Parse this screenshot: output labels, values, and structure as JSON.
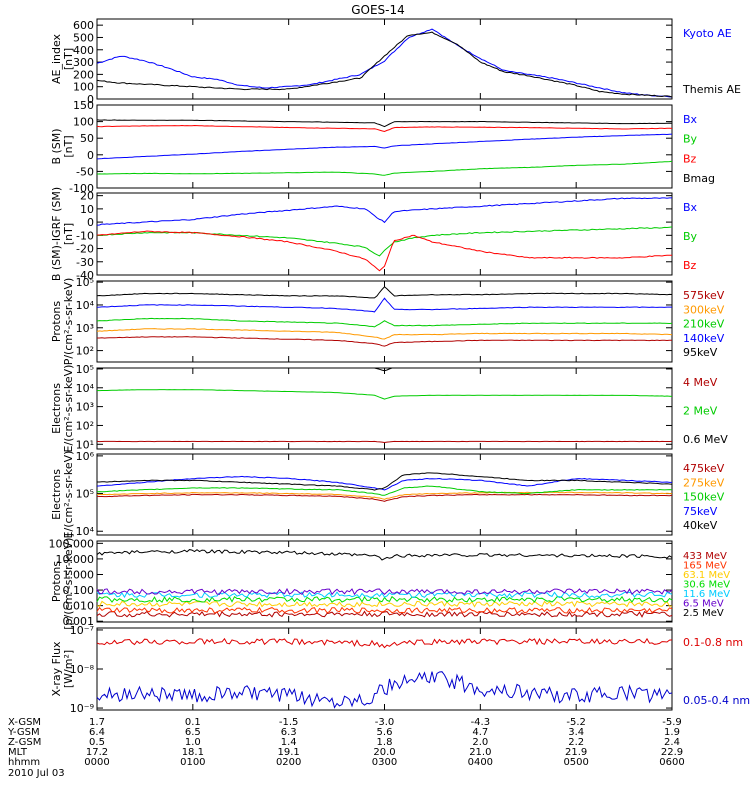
{
  "title": "GOES-14",
  "chart_data": [
    {
      "type": "line",
      "ylabel": "AE_index\n[nT]",
      "ylim": [
        0,
        650
      ],
      "yticks": [
        "600",
        "500",
        "400",
        "300",
        "200",
        "100",
        "0"
      ],
      "tick_values": [
        600,
        500,
        400,
        300,
        200,
        100,
        0
      ],
      "yscale": "linear",
      "x": [
        0,
        0.25,
        0.5,
        0.75,
        1,
        1.25,
        1.5,
        1.75,
        2,
        2.25,
        2.5,
        2.75,
        3,
        3.25,
        3.5,
        3.75,
        4,
        4.25,
        4.5,
        4.75,
        5,
        5.25,
        5.5,
        5.75,
        6
      ],
      "series": [
        {
          "name": "Kyoto AE",
          "color": "#0000ff",
          "values": [
            290,
            350,
            310,
            250,
            180,
            160,
            110,
            90,
            100,
            120,
            160,
            200,
            310,
            500,
            570,
            440,
            330,
            230,
            200,
            170,
            130,
            90,
            50,
            30,
            20
          ]
        },
        {
          "name": "Themis AE",
          "color": "#000000",
          "values": [
            150,
            130,
            120,
            110,
            100,
            90,
            80,
            80,
            80,
            110,
            140,
            170,
            350,
            520,
            540,
            450,
            300,
            220,
            190,
            150,
            110,
            60,
            40,
            30,
            20
          ]
        }
      ]
    },
    {
      "type": "line",
      "ylabel": "B (SM)\n[nT]",
      "ylim": [
        -100,
        150
      ],
      "yticks": [
        "150",
        "100",
        "50",
        "0",
        "-50",
        "-100"
      ],
      "tick_values": [
        150,
        100,
        50,
        0,
        -50,
        -100
      ],
      "yscale": "linear",
      "x": [
        0,
        0.5,
        1,
        1.5,
        2,
        2.5,
        2.9,
        3.0,
        3.1,
        3.5,
        4,
        4.5,
        5,
        5.5,
        6
      ],
      "series": [
        {
          "name": "Bx",
          "color": "#0000ff",
          "values": [
            -12,
            -5,
            2,
            10,
            17,
            23,
            25,
            20,
            27,
            33,
            40,
            47,
            53,
            58,
            62
          ]
        },
        {
          "name": "By",
          "color": "#00cc00",
          "values": [
            -58,
            -56,
            -57,
            -56,
            -54,
            -52,
            -58,
            -62,
            -55,
            -50,
            -42,
            -38,
            -32,
            -28,
            -20
          ]
        },
        {
          "name": "Bz",
          "color": "#ff0000",
          "values": [
            85,
            87,
            88,
            85,
            82,
            80,
            78,
            70,
            82,
            84,
            83,
            82,
            80,
            78,
            80
          ]
        },
        {
          "name": "Bmag",
          "color": "#000000",
          "values": [
            105,
            104,
            104,
            102,
            100,
            98,
            96,
            85,
            100,
            100,
            100,
            98,
            96,
            94,
            95
          ]
        }
      ]
    },
    {
      "type": "line",
      "ylabel": "B (SM)-IGRF (SM)\n[nT]",
      "ylim": [
        -40,
        22
      ],
      "yticks": [
        "20",
        "10",
        "0",
        "-10",
        "-20",
        "-30",
        "-40"
      ],
      "tick_values": [
        20,
        10,
        0,
        -10,
        -20,
        -30,
        -40
      ],
      "yscale": "linear",
      "x": [
        0,
        0.5,
        1,
        1.5,
        2,
        2.5,
        2.8,
        2.95,
        3.0,
        3.1,
        3.3,
        3.5,
        4,
        4.5,
        5,
        5.5,
        6
      ],
      "series": [
        {
          "name": "Bx",
          "color": "#0000ff",
          "values": [
            -2,
            0,
            2,
            6,
            9,
            12,
            10,
            2,
            0,
            8,
            9,
            10,
            12,
            14,
            16,
            18,
            18
          ]
        },
        {
          "name": "By",
          "color": "#00cc00",
          "values": [
            -10,
            -8,
            -8,
            -10,
            -12,
            -16,
            -19,
            -26,
            -21,
            -15,
            -12,
            -10,
            -8,
            -7,
            -6,
            -5,
            -4
          ]
        },
        {
          "name": "Bz",
          "color": "#ff0000",
          "values": [
            -10,
            -7,
            -8,
            -11,
            -15,
            -22,
            -28,
            -37,
            -33,
            -14,
            -10,
            -15,
            -22,
            -27,
            -27,
            -27,
            -25
          ]
        }
      ]
    },
    {
      "type": "line",
      "ylabel": "Protons\nP/(cm²-s-sr-keV)",
      "ylim": [
        1.5,
        5.05
      ],
      "yscale": "log",
      "yticks": [
        "10⁵",
        "10⁴",
        "10³",
        "10²"
      ],
      "tick_values": [
        5,
        4,
        3,
        2
      ],
      "x": [
        0,
        0.5,
        1,
        1.5,
        2,
        2.5,
        2.9,
        3.0,
        3.1,
        3.5,
        4,
        4.5,
        5,
        5.5,
        6
      ],
      "series": [
        {
          "name": "575keV",
          "color": "#b00000",
          "values": [
            2.55,
            2.6,
            2.6,
            2.55,
            2.5,
            2.45,
            2.3,
            2.2,
            2.35,
            2.4,
            2.45,
            2.45,
            2.45,
            2.45,
            2.45
          ]
        },
        {
          "name": "300keV",
          "color": "#ff9900",
          "values": [
            2.85,
            2.95,
            2.95,
            2.9,
            2.85,
            2.8,
            2.6,
            2.5,
            2.7,
            2.7,
            2.75,
            2.75,
            2.75,
            2.75,
            2.7
          ]
        },
        {
          "name": "210keV",
          "color": "#00cc00",
          "values": [
            3.3,
            3.4,
            3.4,
            3.3,
            3.25,
            3.2,
            3.05,
            3.3,
            3.1,
            3.1,
            3.15,
            3.2,
            3.2,
            3.2,
            3.2
          ]
        },
        {
          "name": "140keV",
          "color": "#0000ff",
          "values": [
            3.9,
            4.0,
            4.0,
            3.95,
            3.9,
            3.85,
            3.7,
            4.3,
            3.8,
            3.8,
            3.85,
            3.9,
            3.9,
            3.9,
            3.9
          ]
        },
        {
          "name": "95keV",
          "color": "#000000",
          "values": [
            4.4,
            4.5,
            4.5,
            4.45,
            4.4,
            4.4,
            4.3,
            4.8,
            4.4,
            4.45,
            4.45,
            4.5,
            4.5,
            4.5,
            4.45
          ]
        }
      ]
    },
    {
      "type": "line",
      "ylabel": "Electrons\nE/(cm²-s-sr-keV)",
      "ylim": [
        0.75,
        5.05
      ],
      "yscale": "log",
      "yticks": [
        "10⁵",
        "10⁴",
        "10³",
        "10²",
        "10¹"
      ],
      "tick_values": [
        5,
        4,
        3,
        2,
        1
      ],
      "x": [
        0,
        0.5,
        1,
        1.5,
        2,
        2.5,
        2.9,
        3.0,
        3.1,
        3.5,
        4,
        4.5,
        5,
        5.5,
        6
      ],
      "series": [
        {
          "name": "4 MeV",
          "color": "#b00000",
          "values": [
            1.15,
            1.15,
            1.15,
            1.15,
            1.15,
            1.15,
            1.15,
            1.1,
            1.15,
            1.15,
            1.15,
            1.15,
            1.15,
            1.15,
            1.15
          ]
        },
        {
          "name": "2 MeV",
          "color": "#00cc00",
          "values": [
            3.85,
            3.9,
            3.9,
            3.85,
            3.8,
            3.75,
            3.6,
            3.4,
            3.55,
            3.6,
            3.6,
            3.6,
            3.6,
            3.6,
            3.55
          ]
        },
        {
          "name": "0.6 MeV",
          "color": "#000000",
          "values": [
            5.1,
            5.1,
            5.1,
            5.1,
            5.1,
            5.1,
            5.05,
            4.9,
            5.1,
            5.1,
            5.1,
            5.1,
            5.1,
            5.1,
            5.1
          ]
        }
      ]
    },
    {
      "type": "line",
      "ylabel": "Electrons\nE/(cm²-s-sr-keV)",
      "ylim": [
        3.9,
        6.05
      ],
      "yscale": "log",
      "yticks": [
        "10⁶",
        "10⁵",
        "10⁴"
      ],
      "tick_values": [
        6,
        5,
        4
      ],
      "x": [
        0,
        0.5,
        1,
        1.5,
        2,
        2.5,
        2.9,
        3.0,
        3.2,
        3.5,
        4,
        4.5,
        5,
        5.5,
        6
      ],
      "series": [
        {
          "name": "475keV",
          "color": "#b00000",
          "values": [
            4.92,
            4.95,
            4.97,
            4.97,
            4.95,
            4.93,
            4.85,
            4.8,
            4.92,
            4.95,
            4.97,
            4.97,
            4.97,
            4.95,
            4.95
          ]
        },
        {
          "name": "275keV",
          "color": "#ff9900",
          "values": [
            4.97,
            5.0,
            5.02,
            5.02,
            5.0,
            4.98,
            4.9,
            4.85,
            4.97,
            5.0,
            5.02,
            5.03,
            5.03,
            5.02,
            5.0
          ]
        },
        {
          "name": "150keV",
          "color": "#00cc00",
          "values": [
            5.05,
            5.1,
            5.15,
            5.15,
            5.12,
            5.1,
            5.0,
            4.95,
            5.15,
            5.2,
            5.05,
            5.0,
            5.1,
            5.1,
            5.1
          ]
        },
        {
          "name": "75keV",
          "color": "#0000ff",
          "values": [
            5.2,
            5.3,
            5.4,
            5.45,
            5.4,
            5.3,
            5.15,
            5.1,
            5.35,
            5.4,
            5.35,
            5.2,
            5.4,
            5.35,
            5.3
          ]
        },
        {
          "name": "40keV",
          "color": "#000000",
          "values": [
            5.3,
            5.35,
            5.35,
            5.3,
            5.25,
            5.2,
            5.1,
            5.15,
            5.5,
            5.55,
            5.45,
            5.35,
            5.35,
            5.3,
            5.25
          ]
        }
      ]
    },
    {
      "type": "line",
      "ylabel": "Protons\n[p/(cm²-s-sr-keV)]",
      "ylim": [
        -3.05,
        2.15
      ],
      "yscale": "log",
      "yticks": [
        "100.000",
        "10.000",
        "1.000",
        "0.100",
        "0.010",
        "0.001"
      ],
      "tick_values": [
        2,
        1,
        0,
        -1,
        -2,
        -3
      ],
      "x": [
        0,
        0.5,
        1,
        1.5,
        2,
        2.5,
        2.9,
        3.0,
        3.1,
        3.5,
        4,
        4.5,
        5,
        5.5,
        6
      ],
      "series": [
        {
          "name": "433 MeV",
          "color": "#b00000",
          "values": [
            -2.55,
            -2.55,
            -2.55,
            -2.55,
            -2.55,
            -2.55,
            -2.55,
            -2.55,
            -2.55,
            -2.55,
            -2.55,
            -2.55,
            -2.55,
            -2.55,
            -2.55
          ]
        },
        {
          "name": "165 MeV",
          "color": "#ff3300",
          "values": [
            -2.3,
            -2.3,
            -2.3,
            -2.3,
            -2.3,
            -2.3,
            -2.3,
            -2.3,
            -2.3,
            -2.3,
            -2.3,
            -2.3,
            -2.3,
            -2.3,
            -2.3
          ]
        },
        {
          "name": "63.1 MeV",
          "color": "#ffcc00",
          "values": [
            -1.9,
            -1.9,
            -1.9,
            -1.9,
            -1.9,
            -1.9,
            -1.9,
            -1.9,
            -1.9,
            -1.9,
            -1.9,
            -1.9,
            -1.9,
            -1.9,
            -1.9
          ]
        },
        {
          "name": "30.6 MeV",
          "color": "#00dd00",
          "values": [
            -1.6,
            -1.6,
            -1.6,
            -1.6,
            -1.6,
            -1.6,
            -1.6,
            -1.6,
            -1.6,
            -1.6,
            -1.6,
            -1.6,
            -1.6,
            -1.6,
            -1.6
          ]
        },
        {
          "name": "11.6 MeV",
          "color": "#00ccff",
          "values": [
            -1.3,
            -1.3,
            -1.3,
            -1.3,
            -1.3,
            -1.3,
            -1.3,
            -1.3,
            -1.3,
            -1.3,
            -1.3,
            -1.3,
            -1.3,
            -1.3,
            -1.3
          ]
        },
        {
          "name": "6.5 MeV",
          "color": "#6600cc",
          "values": [
            -1.1,
            -1.1,
            -1.1,
            -1.1,
            -1.1,
            -1.1,
            -1.1,
            -1.1,
            -1.1,
            -1.1,
            -1.1,
            -1.1,
            -1.1,
            -1.1,
            -1.1
          ]
        },
        {
          "name": "2.5 MeV",
          "color": "#000000",
          "values": [
            1.35,
            1.45,
            1.5,
            1.45,
            1.4,
            1.3,
            1.2,
            0.95,
            1.2,
            1.25,
            1.25,
            1.25,
            1.2,
            1.2,
            1.15
          ]
        }
      ]
    },
    {
      "type": "line",
      "ylabel": "X-ray Flux\n[W/m²]",
      "ylim": [
        -9.05,
        -6.95
      ],
      "yscale": "log",
      "yticks": [
        "10⁻⁷",
        "10⁻⁸",
        "10⁻⁹"
      ],
      "tick_values": [
        -7,
        -8,
        -9
      ],
      "x": [
        0,
        0.5,
        1,
        1.5,
        2,
        2.5,
        2.9,
        3.0,
        3.1,
        3.5,
        4,
        4.5,
        5,
        5.5,
        6
      ],
      "series": [
        {
          "name": "0.1-0.8 nm",
          "color": "#dd0000",
          "values": [
            -7.35,
            -7.3,
            -7.3,
            -7.3,
            -7.3,
            -7.32,
            -7.35,
            -7.45,
            -7.35,
            -7.3,
            -7.3,
            -7.3,
            -7.3,
            -7.3,
            -7.3
          ]
        },
        {
          "name": "0.05-0.4 nm",
          "color": "#0000cc",
          "values": [
            -8.7,
            -8.6,
            -8.7,
            -8.6,
            -8.7,
            -8.8,
            -8.7,
            -8.5,
            -8.4,
            -8.2,
            -8.5,
            -8.6,
            -8.7,
            -8.6,
            -8.7
          ]
        }
      ]
    }
  ],
  "x_axis": {
    "rows": [
      {
        "label": "X-GSM",
        "values": [
          "1.7",
          "0.1",
          "-1.5",
          "-3.0",
          "-4.3",
          "-5.2",
          "-5.9"
        ]
      },
      {
        "label": "Y-GSM",
        "values": [
          "6.4",
          "6.5",
          "6.3",
          "5.6",
          "4.7",
          "3.4",
          "1.9"
        ]
      },
      {
        "label": "Z-GSM",
        "values": [
          "0.5",
          "1.0",
          "1.4",
          "1.8",
          "2.0",
          "2.2",
          "2.4"
        ]
      },
      {
        "label": "MLT",
        "values": [
          "17.2",
          "18.1",
          "19.1",
          "20.0",
          "21.0",
          "21.9",
          "22.9"
        ]
      },
      {
        "label": "hhmm",
        "values": [
          "0000",
          "0100",
          "0200",
          "0300",
          "0400",
          "0500",
          "0600"
        ]
      }
    ],
    "date": "2010 Jul 03"
  }
}
